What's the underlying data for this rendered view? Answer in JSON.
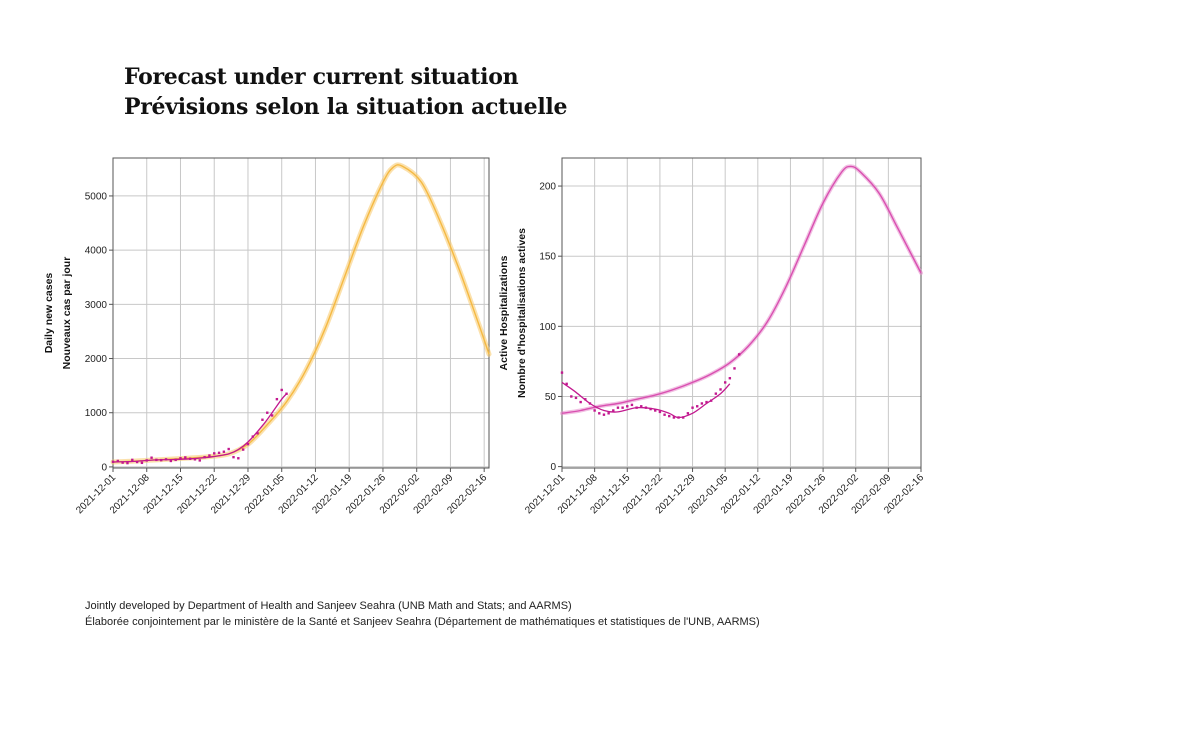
{
  "title": {
    "line1": "Forecast under current situation",
    "line2": "Prévisions selon la situation actuelle"
  },
  "footer": {
    "line1": "Jointly developed by Department of Health and Sanjeev Seahra (UNB Math and Stats; and AARMS)",
    "line2": "Élaborée conjointement par le ministère de la Santé et Sanjeev Seahra (Département de mathématiques et statistiques de l'UNB, AARMS)"
  },
  "colors": {
    "cases_forecast": "#f5b942",
    "cases_band": "#f7c96a",
    "hosp_forecast": "#d94fb0",
    "hosp_band": "#e58ccc",
    "observed": "#c2188f",
    "grid": "#c8c8c8",
    "frame": "#555555"
  },
  "chart_data": [
    {
      "type": "line",
      "xlabel": "",
      "ylabel": [
        "Daily new cases",
        "Nouveaux cas par jour"
      ],
      "x_range": [
        "2021-12-01",
        "2022-02-17"
      ],
      "ylim": [
        -20,
        5700
      ],
      "yticks": [
        0,
        1000,
        2000,
        3000,
        4000,
        5000
      ],
      "xticks": [
        "2021-12-01",
        "2021-12-08",
        "2021-12-15",
        "2021-12-22",
        "2021-12-29",
        "2022-01-05",
        "2022-01-12",
        "2022-01-19",
        "2022-01-26",
        "2022-02-02",
        "2022-02-09",
        "2022-02-16"
      ],
      "grid": true,
      "legend": "none",
      "series": [
        {
          "kind": "forecast-band",
          "x": [
            "2021-12-01",
            "2021-12-05",
            "2021-12-09",
            "2021-12-13",
            "2021-12-17",
            "2021-12-21",
            "2021-12-25",
            "2021-12-29",
            "2022-01-02",
            "2022-01-06",
            "2022-01-10",
            "2022-01-14",
            "2022-01-18",
            "2022-01-22",
            "2022-01-26",
            "2022-01-28",
            "2022-01-30",
            "2022-02-03",
            "2022-02-07",
            "2022-02-11",
            "2022-02-15",
            "2022-02-17"
          ],
          "y": [
            90,
            105,
            125,
            145,
            165,
            190,
            240,
            420,
            780,
            1200,
            1780,
            2550,
            3500,
            4450,
            5250,
            5520,
            5550,
            5250,
            4500,
            3600,
            2600,
            2080
          ]
        },
        {
          "kind": "fit",
          "x": [
            "2021-12-01",
            "2021-12-05",
            "2021-12-09",
            "2021-12-13",
            "2021-12-17",
            "2021-12-21",
            "2021-12-25",
            "2021-12-27",
            "2021-12-29",
            "2022-01-01",
            "2022-01-03",
            "2022-01-05",
            "2022-01-06"
          ],
          "y": [
            90,
            100,
            125,
            135,
            150,
            180,
            240,
            320,
            460,
            760,
            1000,
            1250,
            1350
          ]
        },
        {
          "kind": "observed",
          "x": [
            "2021-12-01",
            "2021-12-02",
            "2021-12-03",
            "2021-12-04",
            "2021-12-05",
            "2021-12-06",
            "2021-12-07",
            "2021-12-08",
            "2021-12-09",
            "2021-12-10",
            "2021-12-11",
            "2021-12-12",
            "2021-12-13",
            "2021-12-14",
            "2021-12-15",
            "2021-12-16",
            "2021-12-17",
            "2021-12-18",
            "2021-12-19",
            "2021-12-20",
            "2021-12-21",
            "2021-12-22",
            "2021-12-23",
            "2021-12-24",
            "2021-12-25",
            "2021-12-26",
            "2021-12-27",
            "2021-12-28",
            "2021-12-29",
            "2021-12-30",
            "2021-12-31",
            "2022-01-01",
            "2022-01-02",
            "2022-01-03",
            "2022-01-04",
            "2022-01-05",
            "2022-01-06"
          ],
          "y": [
            95,
            110,
            80,
            70,
            130,
            90,
            75,
            120,
            170,
            130,
            125,
            140,
            110,
            130,
            160,
            175,
            150,
            140,
            120,
            180,
            210,
            250,
            260,
            280,
            330,
            180,
            160,
            320,
            420,
            560,
            620,
            870,
            1000,
            950,
            1250,
            1420,
            1350
          ]
        }
      ]
    },
    {
      "type": "line",
      "xlabel": "",
      "ylabel": [
        "Active Hospitalizations",
        "Nombre d'hospitalisations actives"
      ],
      "x_range": [
        "2021-12-01",
        "2022-02-16"
      ],
      "ylim": [
        -1,
        220
      ],
      "yticks": [
        0,
        50,
        100,
        150,
        200
      ],
      "xticks": [
        "2021-12-01",
        "2021-12-08",
        "2021-12-15",
        "2021-12-22",
        "2021-12-29",
        "2022-01-05",
        "2022-01-12",
        "2022-01-19",
        "2022-01-26",
        "2022-02-02",
        "2022-02-09",
        "2022-02-16"
      ],
      "grid": true,
      "legend": "none",
      "series": [
        {
          "kind": "forecast-band",
          "x": [
            "2021-12-01",
            "2021-12-05",
            "2021-12-09",
            "2021-12-13",
            "2021-12-17",
            "2021-12-21",
            "2021-12-25",
            "2021-12-29",
            "2022-01-02",
            "2022-01-06",
            "2022-01-10",
            "2022-01-14",
            "2022-01-18",
            "2022-01-22",
            "2022-01-26",
            "2022-01-30",
            "2022-02-01",
            "2022-02-03",
            "2022-02-07",
            "2022-02-11",
            "2022-02-16"
          ],
          "y": [
            38,
            40,
            43,
            45,
            48,
            51,
            55,
            60,
            66,
            74,
            86,
            103,
            128,
            158,
            188,
            210,
            214,
            210,
            195,
            170,
            138
          ]
        },
        {
          "kind": "fit",
          "x": [
            "2021-12-01",
            "2021-12-04",
            "2021-12-07",
            "2021-12-10",
            "2021-12-13",
            "2021-12-17",
            "2021-12-21",
            "2021-12-24",
            "2021-12-26",
            "2021-12-29",
            "2022-01-01",
            "2022-01-04",
            "2022-01-06"
          ],
          "y": [
            60,
            53,
            45,
            40,
            39,
            42,
            41,
            38,
            35,
            38,
            45,
            52,
            59
          ]
        },
        {
          "kind": "observed",
          "x": [
            "2021-12-01",
            "2021-12-02",
            "2021-12-03",
            "2021-12-04",
            "2021-12-05",
            "2021-12-06",
            "2021-12-07",
            "2021-12-08",
            "2021-12-09",
            "2021-12-10",
            "2021-12-11",
            "2021-12-12",
            "2021-12-13",
            "2021-12-14",
            "2021-12-15",
            "2021-12-16",
            "2021-12-17",
            "2021-12-18",
            "2021-12-19",
            "2021-12-20",
            "2021-12-21",
            "2021-12-22",
            "2021-12-23",
            "2021-12-24",
            "2021-12-25",
            "2021-12-26",
            "2021-12-27",
            "2021-12-28",
            "2021-12-29",
            "2021-12-30",
            "2021-12-31",
            "2022-01-01",
            "2022-01-02",
            "2022-01-03",
            "2022-01-04",
            "2022-01-05",
            "2022-01-06",
            "2022-01-07",
            "2022-01-08"
          ],
          "y": [
            67,
            59,
            50,
            49,
            46,
            48,
            45,
            40,
            38,
            37,
            38,
            40,
            42,
            42,
            43,
            44,
            42,
            43,
            42,
            41,
            40,
            39,
            37,
            36,
            35,
            35,
            35,
            38,
            42,
            43,
            45,
            46,
            47,
            52,
            55,
            60,
            63,
            70,
            80
          ]
        }
      ]
    }
  ]
}
